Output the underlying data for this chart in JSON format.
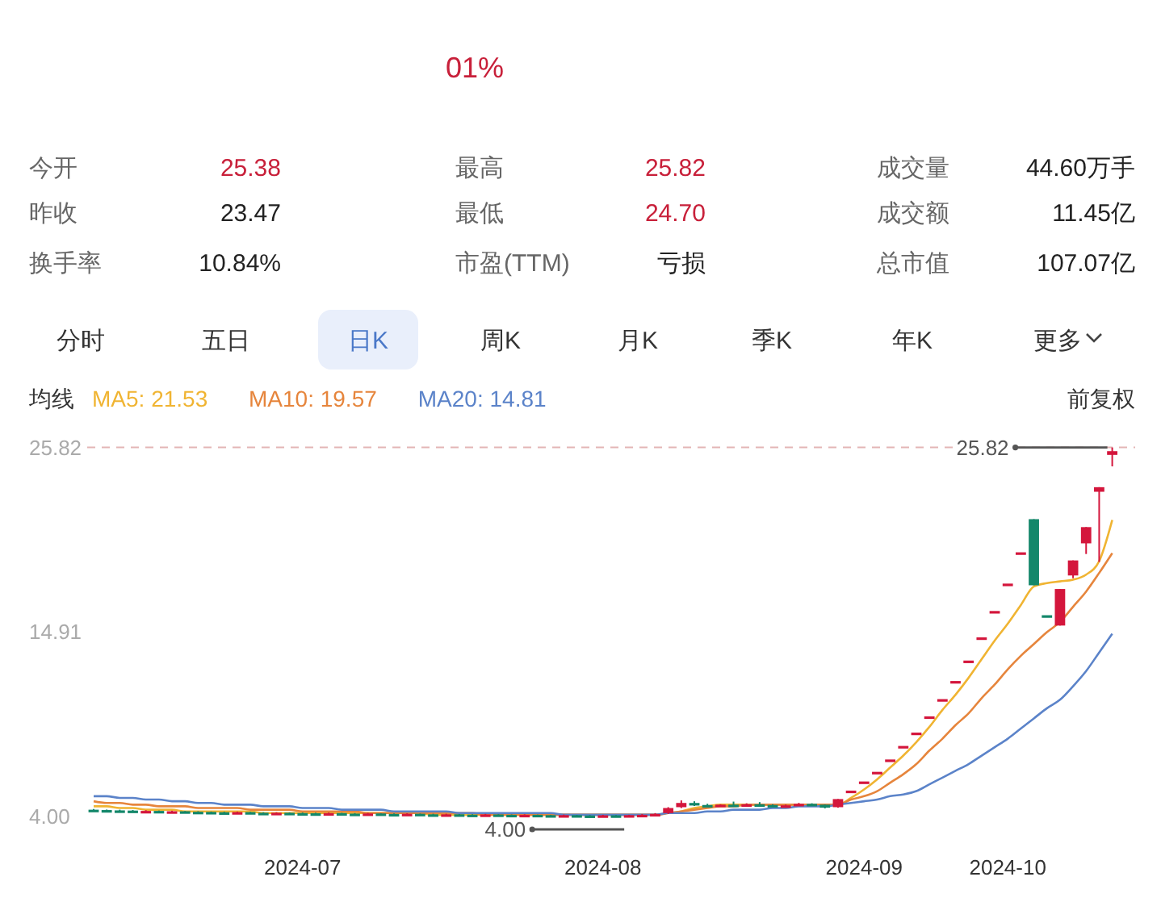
{
  "chart_data": {
    "type": "candlestick",
    "legend_title": "均线",
    "annotations": [
      "01%",
      "今开",
      "25.38",
      "最高",
      "25.82",
      "成交量",
      "44.60万手",
      "昨收",
      "23.47",
      "最低",
      "24.70",
      "成交额",
      "11.45亿",
      "换手率",
      "10.84%",
      "市盈(TTM)",
      "亏损",
      "总市值",
      "107.07亿",
      "分时",
      "五日",
      "日K",
      "周K",
      "月K",
      "季K",
      "年K",
      "更多",
      "前复权",
      "25.82",
      "4.00"
    ],
    "categories": [
      null,
      null,
      null,
      null,
      null,
      null,
      null,
      null,
      null,
      null,
      null,
      null,
      null,
      null,
      null,
      null,
      "2024-07",
      null,
      null,
      null,
      null,
      null,
      null,
      null,
      null,
      null,
      null,
      null,
      null,
      null,
      null,
      null,
      null,
      null,
      null,
      null,
      null,
      null,
      null,
      "2024-08",
      null,
      null,
      null,
      null,
      null,
      null,
      null,
      null,
      null,
      null,
      null,
      null,
      null,
      null,
      null,
      null,
      null,
      null,
      null,
      "2024-09",
      null,
      null,
      null,
      null,
      null,
      null,
      null,
      null,
      null,
      null,
      "2024-10",
      null,
      null,
      null,
      null,
      null,
      null,
      null,
      null
    ],
    "ohlc": [
      [
        4.4,
        4.44,
        4.33,
        4.38
      ],
      [
        4.38,
        4.41,
        4.32,
        4.36
      ],
      [
        4.36,
        4.4,
        4.31,
        4.35
      ],
      [
        4.35,
        4.38,
        4.3,
        4.34
      ],
      [
        4.32,
        4.37,
        4.29,
        4.33
      ],
      [
        4.33,
        4.35,
        4.26,
        4.3
      ],
      [
        4.3,
        4.34,
        4.27,
        4.31
      ],
      [
        4.31,
        4.32,
        4.24,
        4.28
      ],
      [
        4.28,
        4.31,
        4.23,
        4.27
      ],
      [
        4.27,
        4.29,
        4.21,
        4.25
      ],
      [
        4.25,
        4.28,
        4.2,
        4.24
      ],
      [
        4.24,
        4.29,
        4.21,
        4.26
      ],
      [
        4.26,
        4.27,
        4.18,
        4.22
      ],
      [
        4.22,
        4.25,
        4.17,
        4.21
      ],
      [
        4.21,
        4.25,
        4.18,
        4.22
      ],
      [
        4.22,
        4.24,
        4.16,
        4.2
      ],
      [
        4.2,
        4.23,
        4.15,
        4.19
      ],
      [
        4.19,
        4.22,
        4.14,
        4.18
      ],
      [
        4.18,
        4.23,
        4.15,
        4.2
      ],
      [
        4.2,
        4.21,
        4.13,
        4.17
      ],
      [
        4.17,
        4.2,
        4.12,
        4.16
      ],
      [
        4.16,
        4.21,
        4.13,
        4.18
      ],
      [
        4.18,
        4.19,
        4.11,
        4.15
      ],
      [
        4.15,
        4.18,
        4.1,
        4.14
      ],
      [
        4.14,
        4.19,
        4.11,
        4.16
      ],
      [
        4.16,
        4.17,
        4.09,
        4.13
      ],
      [
        4.13,
        4.16,
        4.08,
        4.12
      ],
      [
        4.12,
        4.16,
        4.09,
        4.13
      ],
      [
        4.13,
        4.14,
        4.07,
        4.11
      ],
      [
        4.11,
        4.13,
        4.06,
        4.1
      ],
      [
        4.1,
        4.15,
        4.07,
        4.12
      ],
      [
        4.12,
        4.13,
        4.06,
        4.1
      ],
      [
        4.1,
        4.12,
        4.05,
        4.09
      ],
      [
        4.09,
        4.13,
        4.06,
        4.1
      ],
      [
        4.1,
        4.11,
        4.04,
        4.08
      ],
      [
        4.08,
        4.1,
        4.03,
        4.07
      ],
      [
        4.07,
        4.11,
        4.04,
        4.08
      ],
      [
        4.08,
        4.09,
        4.02,
        4.06
      ],
      [
        4.06,
        4.08,
        4.02,
        4.05
      ],
      [
        4.05,
        4.1,
        4.03,
        4.07
      ],
      [
        4.07,
        4.08,
        4.02,
        4.04
      ],
      [
        4.04,
        4.1,
        4.0,
        4.08
      ],
      [
        4.08,
        4.14,
        4.05,
        4.1
      ],
      [
        4.1,
        4.2,
        4.08,
        4.15
      ],
      [
        4.2,
        4.55,
        4.15,
        4.5
      ],
      [
        4.55,
        4.95,
        4.5,
        4.8
      ],
      [
        4.8,
        4.9,
        4.62,
        4.68
      ],
      [
        4.68,
        4.75,
        4.58,
        4.62
      ],
      [
        4.62,
        4.72,
        4.58,
        4.7
      ],
      [
        4.7,
        4.88,
        4.62,
        4.66
      ],
      [
        4.66,
        4.78,
        4.6,
        4.72
      ],
      [
        4.72,
        4.85,
        4.62,
        4.68
      ],
      [
        4.68,
        4.72,
        4.6,
        4.64
      ],
      [
        4.64,
        4.7,
        4.58,
        4.66
      ],
      [
        4.66,
        4.8,
        4.62,
        4.75
      ],
      [
        4.75,
        4.78,
        4.66,
        4.7
      ],
      [
        4.7,
        4.7,
        4.48,
        4.52
      ],
      [
        4.55,
        5.03,
        4.52,
        5.03
      ],
      [
        5.53,
        5.53,
        5.53,
        5.53
      ],
      [
        6.07,
        6.07,
        6.07,
        6.07
      ],
      [
        6.64,
        6.64,
        6.64,
        6.64
      ],
      [
        7.37,
        7.37,
        7.37,
        7.37
      ],
      [
        8.17,
        8.17,
        8.17,
        8.17
      ],
      [
        8.96,
        8.96,
        8.96,
        8.96
      ],
      [
        9.92,
        9.92,
        9.92,
        9.92
      ],
      [
        10.94,
        10.94,
        10.94,
        10.94
      ],
      [
        12.01,
        12.01,
        12.01,
        12.01
      ],
      [
        13.22,
        13.22,
        13.22,
        13.22
      ],
      [
        14.59,
        14.59,
        14.59,
        14.59
      ],
      [
        16.15,
        16.15,
        16.15,
        16.15
      ],
      [
        17.77,
        17.77,
        17.77,
        17.77
      ],
      [
        19.62,
        19.62,
        19.62,
        19.62
      ],
      [
        21.58,
        21.58,
        17.67,
        17.67
      ],
      [
        15.9,
        15.9,
        15.9,
        15.9
      ],
      [
        15.29,
        17.45,
        15.29,
        17.45
      ],
      [
        18.25,
        19.14,
        18.09,
        19.14
      ],
      [
        20.15,
        21.11,
        19.52,
        21.11
      ],
      [
        23.2,
        23.47,
        19.05,
        23.47
      ],
      [
        25.38,
        25.82,
        24.7,
        25.6
      ]
    ],
    "colors": [
      "#13876a",
      "#13876a",
      "#13876a",
      "#13876a",
      "#d4163c",
      "#13876a",
      "#d4163c",
      "#13876a",
      "#13876a",
      "#13876a",
      "#13876a",
      "#d4163c",
      "#13876a",
      "#13876a",
      "#d4163c",
      "#13876a",
      "#13876a",
      "#13876a",
      "#d4163c",
      "#13876a",
      "#13876a",
      "#d4163c",
      "#13876a",
      "#13876a",
      "#d4163c",
      "#13876a",
      "#13876a",
      "#d4163c",
      "#13876a",
      "#13876a",
      "#d4163c",
      "#13876a",
      "#13876a",
      "#d4163c",
      "#13876a",
      "#13876a",
      "#d4163c",
      "#13876a",
      "#13876a",
      "#d4163c",
      "#13876a",
      "#d4163c",
      "#d4163c",
      "#d4163c",
      "#d4163c",
      "#d4163c",
      "#13876a",
      "#13876a",
      "#d4163c",
      "#13876a",
      "#d4163c",
      "#13876a",
      "#13876a",
      "#d4163c",
      "#d4163c",
      "#13876a",
      "#13876a",
      "#d4163c",
      "#d4163c",
      "#d4163c",
      "#d4163c",
      "#d4163c",
      "#d4163c",
      "#d4163c",
      "#d4163c",
      "#d4163c",
      "#d4163c",
      "#d4163c",
      "#d4163c",
      "#d4163c",
      "#d4163c",
      "#d4163c",
      "#13876a",
      "#13876a",
      "#d4163c",
      "#d4163c",
      "#d4163c",
      "#d4163c",
      "#d4163c"
    ],
    "series": [
      {
        "type": "line",
        "name": "MA5: 21.53",
        "color": "#f0b432",
        "values": [
          4.6,
          4.6,
          4.5,
          4.5,
          4.4,
          4.4,
          4.4,
          4.3,
          4.3,
          4.3,
          4.3,
          4.3,
          4.3,
          4.2,
          4.2,
          4.2,
          4.2,
          4.2,
          4.2,
          4.2,
          4.2,
          4.2,
          4.2,
          4.2,
          4.2,
          4.2,
          4.1,
          4.1,
          4.1,
          4.1,
          4.1,
          4.1,
          4.1,
          4.1,
          4.1,
          4.1,
          4.1,
          4.1,
          4.1,
          4.1,
          4.1,
          4.1,
          4.1,
          4.1,
          4.2,
          4.3,
          4.5,
          4.6,
          4.7,
          4.7,
          4.7,
          4.7,
          4.7,
          4.7,
          4.7,
          4.7,
          4.7,
          4.7,
          5.1,
          5.6,
          6.2,
          6.9,
          7.6,
          8.4,
          9.3,
          10.3,
          11.2,
          12.2,
          13.3,
          14.4,
          15.4,
          16.5,
          17.6,
          17.8,
          17.9,
          18.0,
          18.3,
          19.1,
          21.53
        ]
      },
      {
        "type": "line",
        "name": "MA10: 19.57",
        "color": "#e6853c",
        "values": [
          4.9,
          4.8,
          4.8,
          4.7,
          4.7,
          4.6,
          4.6,
          4.6,
          4.5,
          4.5,
          4.5,
          4.5,
          4.4,
          4.4,
          4.4,
          4.4,
          4.3,
          4.3,
          4.3,
          4.3,
          4.3,
          4.2,
          4.2,
          4.2,
          4.2,
          4.2,
          4.2,
          4.2,
          4.2,
          4.2,
          4.1,
          4.1,
          4.1,
          4.1,
          4.1,
          4.1,
          4.1,
          4.1,
          4.1,
          4.1,
          4.1,
          4.1,
          4.1,
          4.1,
          4.2,
          4.3,
          4.4,
          4.5,
          4.6,
          4.6,
          4.7,
          4.7,
          4.7,
          4.7,
          4.7,
          4.7,
          4.7,
          4.7,
          5.0,
          5.2,
          5.5,
          6.0,
          6.5,
          7.1,
          7.9,
          8.6,
          9.4,
          10.1,
          11.0,
          11.8,
          12.7,
          13.5,
          14.2,
          14.9,
          15.5,
          16.4,
          17.3,
          18.4,
          19.57
        ]
      },
      {
        "type": "line",
        "name": "MA20: 14.81",
        "color": "#5b83c9",
        "values": [
          5.2,
          5.2,
          5.1,
          5.1,
          5.0,
          5.0,
          4.9,
          4.9,
          4.8,
          4.8,
          4.7,
          4.7,
          4.7,
          4.6,
          4.6,
          4.6,
          4.5,
          4.5,
          4.5,
          4.4,
          4.4,
          4.4,
          4.4,
          4.3,
          4.3,
          4.3,
          4.3,
          4.3,
          4.2,
          4.2,
          4.2,
          4.2,
          4.2,
          4.2,
          4.2,
          4.2,
          4.1,
          4.1,
          4.1,
          4.1,
          4.1,
          4.1,
          4.1,
          4.1,
          4.2,
          4.2,
          4.2,
          4.3,
          4.3,
          4.4,
          4.4,
          4.4,
          4.5,
          4.5,
          4.6,
          4.6,
          4.6,
          4.7,
          4.8,
          4.9,
          5.0,
          5.2,
          5.3,
          5.5,
          5.9,
          6.3,
          6.7,
          7.1,
          7.6,
          8.1,
          8.6,
          9.2,
          9.8,
          10.4,
          10.9,
          11.7,
          12.6,
          13.7,
          14.81
        ]
      }
    ],
    "ylim": [
      4.0,
      25.82
    ],
    "yticks": [
      {
        "value": 4.0,
        "label": "4.00"
      },
      14.91,
      25.82
    ],
    "ref_lines": [
      {
        "axis": "y",
        "value": 25.82,
        "color": "#e3b5b5",
        "line_style": "dashed"
      }
    ]
  }
}
